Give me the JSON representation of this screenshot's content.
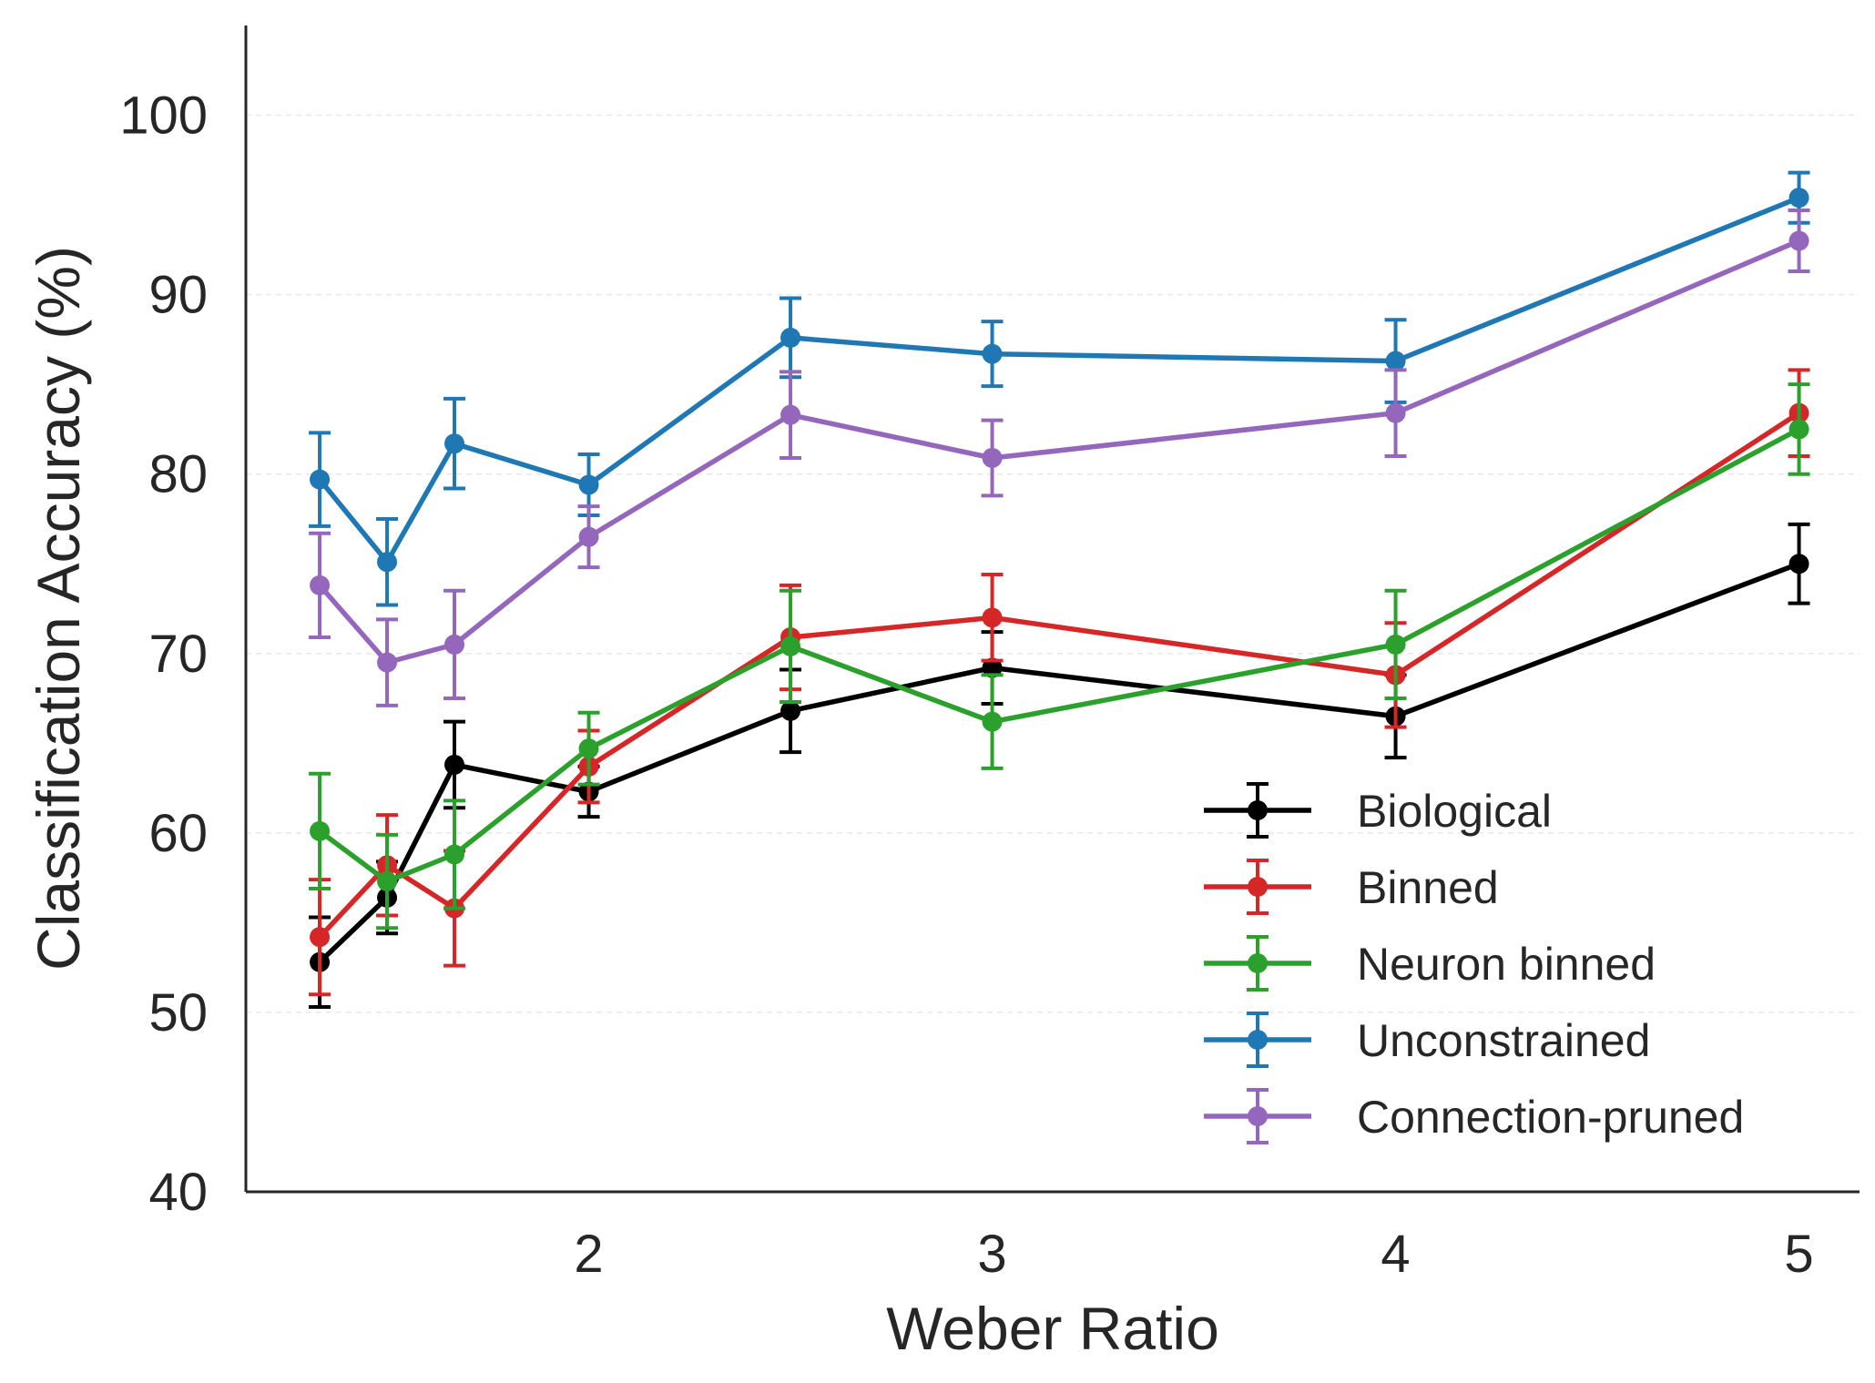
{
  "chart_data": {
    "type": "line",
    "xlabel": "Weber Ratio",
    "ylabel": "Classification Accuracy (%)",
    "xlim": [
      1.15,
      5.15
    ],
    "ylim": [
      40,
      105
    ],
    "x_ticks": [
      "2",
      "3",
      "4",
      "5"
    ],
    "y_ticks": [
      "40",
      "50",
      "60",
      "70",
      "80",
      "90",
      "100"
    ],
    "grid": "horizontal dashed, light",
    "legend_position": "lower-right",
    "x": [
      1.333,
      1.5,
      1.667,
      2,
      2.5,
      3,
      4,
      5
    ],
    "series": [
      {
        "name": "Biological",
        "color": "#000000",
        "values": [
          52.8,
          56.4,
          63.8,
          62.3,
          66.8,
          69.2,
          66.5,
          75.0
        ],
        "errors": [
          2.5,
          2.0,
          2.4,
          1.4,
          2.3,
          2.0,
          2.3,
          2.2
        ]
      },
      {
        "name": "Binned",
        "color": "#d62728",
        "values": [
          54.2,
          58.2,
          55.8,
          63.7,
          70.9,
          72.0,
          68.8,
          83.4
        ],
        "errors": [
          3.2,
          2.8,
          3.2,
          2.0,
          2.9,
          2.4,
          2.9,
          2.4
        ]
      },
      {
        "name": "Neuron binned",
        "color": "#2ca02c",
        "values": [
          60.1,
          57.3,
          58.8,
          64.7,
          70.4,
          66.2,
          70.5,
          82.5
        ],
        "errors": [
          3.2,
          2.6,
          3.0,
          2.0,
          3.1,
          2.6,
          3.0,
          2.5
        ]
      },
      {
        "name": "Unconstrained",
        "color": "#1f77b4",
        "values": [
          79.7,
          75.1,
          81.7,
          79.4,
          87.6,
          86.7,
          86.3,
          95.4
        ],
        "errors": [
          2.6,
          2.4,
          2.5,
          1.7,
          2.2,
          1.8,
          2.3,
          1.4
        ]
      },
      {
        "name": "Connection-pruned",
        "color": "#9467bd",
        "values": [
          73.8,
          69.5,
          70.5,
          76.5,
          83.3,
          80.9,
          83.4,
          93.0
        ],
        "errors": [
          2.9,
          2.4,
          3.0,
          1.7,
          2.4,
          2.1,
          2.4,
          1.7
        ]
      }
    ]
  }
}
